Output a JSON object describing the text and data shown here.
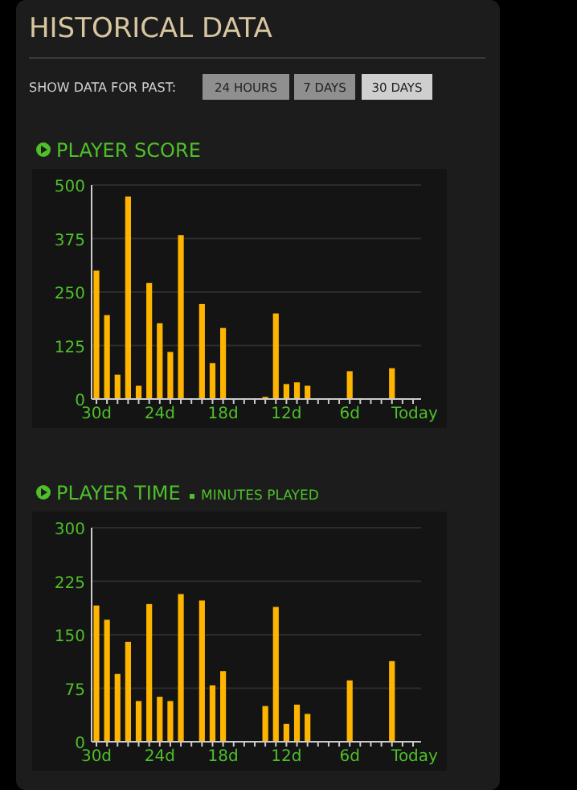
{
  "chart_data": [
    {
      "type": "bar",
      "title": "PLAYER SCORE",
      "annotations": [
        "HISTORICAL DATA",
        "SHOW DATA FOR PAST:",
        "24 HOURS",
        "7 DAYS",
        "30 DAYS"
      ],
      "categories": [
        "30d",
        null,
        null,
        null,
        null,
        null,
        "24d",
        null,
        null,
        null,
        null,
        null,
        "18d",
        null,
        null,
        null,
        null,
        null,
        "12d",
        null,
        null,
        null,
        null,
        null,
        "6d",
        null,
        null,
        null,
        null,
        null,
        "Today"
      ],
      "values": [
        300,
        196,
        57,
        473,
        31,
        271,
        177,
        110,
        383,
        null,
        222,
        84,
        166,
        null,
        null,
        null,
        5,
        200,
        35,
        39,
        31,
        null,
        null,
        null,
        65,
        null,
        null,
        null,
        72,
        null,
        null
      ],
      "color": "#ffb400",
      "ylim": [
        0,
        500
      ],
      "yticks": [
        0,
        125,
        250,
        375,
        500
      ],
      "grid": "y"
    },
    {
      "type": "bar",
      "title": "PLAYER TIME",
      "subtitle": "MINUTES PLAYED",
      "categories": [
        "30d",
        null,
        null,
        null,
        null,
        null,
        "24d",
        null,
        null,
        null,
        null,
        null,
        "18d",
        null,
        null,
        null,
        null,
        null,
        "12d",
        null,
        null,
        null,
        null,
        null,
        "6d",
        null,
        null,
        null,
        null,
        null,
        "Today"
      ],
      "values": [
        191,
        171,
        95,
        140,
        57,
        193,
        63,
        57,
        207,
        null,
        198,
        79,
        99,
        null,
        null,
        null,
        50,
        189,
        25,
        52,
        39,
        null,
        null,
        null,
        86,
        null,
        null,
        null,
        113,
        null,
        null
      ],
      "color": "#ffb400",
      "ylim": [
        0,
        300
      ],
      "yticks": [
        0,
        75,
        150,
        225,
        300
      ],
      "grid": "y"
    }
  ]
}
